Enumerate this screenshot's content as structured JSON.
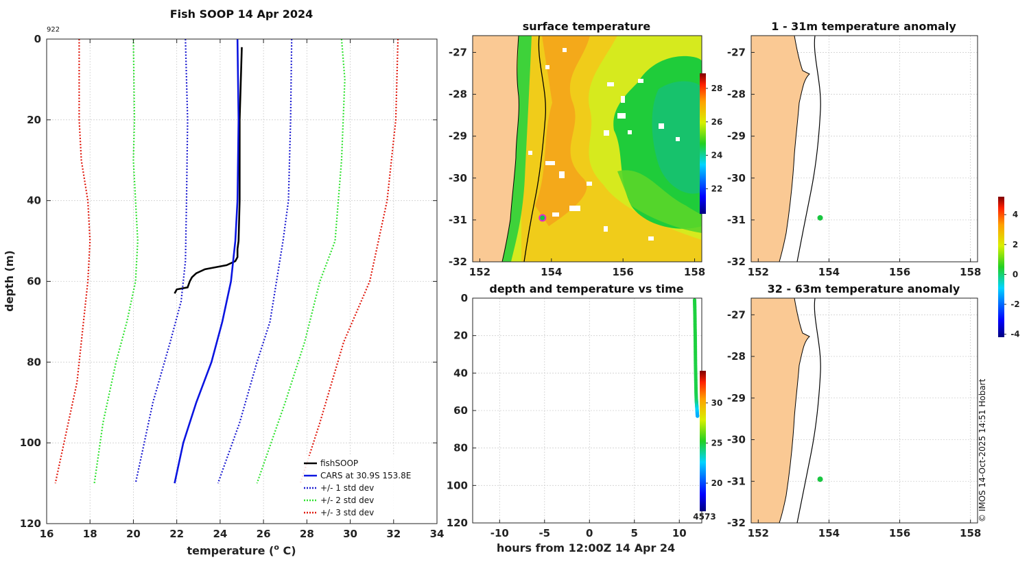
{
  "colors": {
    "fish": "#000000",
    "cars": "#0a14e0",
    "std1": "#1a1ad0",
    "std2": "#2ee22e",
    "std3": "#e0180c",
    "land": "#fac994",
    "marker": "#19c640",
    "ring": "#e02ad0"
  },
  "chart_data": [
    {
      "id": "profile",
      "type": "line",
      "title": "Fish SOOP 14 Apr 2024",
      "corner_label": "922",
      "xlabel": "temperature (",
      "xlabel_sup": "o",
      "xlabel_end": " C)",
      "ylabel": "depth (m)",
      "xlim": [
        16,
        34
      ],
      "ylim": [
        0,
        120
      ],
      "xticks": [
        16,
        18,
        20,
        22,
        24,
        26,
        28,
        30,
        32,
        34
      ],
      "yticks": [
        0,
        20,
        40,
        60,
        80,
        100,
        120
      ],
      "series": [
        {
          "name": "fishSOOP",
          "style": "solid",
          "color_key": "fish",
          "temp": [
            25.0,
            24.9,
            24.9,
            24.85,
            24.8,
            24.8,
            24.7,
            24.3,
            23.8,
            23.3,
            22.9,
            22.7,
            22.6,
            22.5,
            22.0,
            21.9
          ],
          "depth": [
            2,
            20,
            40,
            50,
            52,
            54,
            55,
            56,
            56.5,
            57,
            58,
            59,
            60,
            61.5,
            62,
            63
          ]
        },
        {
          "name": "CARS at 30.9S 153.8E",
          "style": "solid",
          "color_key": "cars",
          "temp": [
            24.8,
            24.85,
            24.8,
            24.7,
            24.5,
            24.3,
            24.1,
            23.6,
            22.9,
            22.3,
            21.9
          ],
          "depth": [
            0,
            20,
            40,
            50,
            60,
            65,
            70,
            80,
            90,
            100,
            110
          ]
        },
        {
          "name": "+/- 1 std dev",
          "style": "dotted",
          "color_key": "std1",
          "temp": [
            22.4,
            22.5,
            22.45,
            22.4,
            22.2,
            21.7,
            20.9,
            20.1
          ],
          "depth": [
            0,
            20,
            40,
            55,
            65,
            75,
            90,
            110
          ]
        },
        {
          "name": "+/- 1 std dev (upper)",
          "style": "dotted",
          "color_key": "std1",
          "temp": [
            27.3,
            27.25,
            27.15,
            26.9,
            26.6,
            26.3,
            25.7,
            24.9,
            23.9
          ],
          "depth": [
            0,
            20,
            40,
            50,
            60,
            70,
            80,
            95,
            110
          ]
        },
        {
          "name": "+/- 2 std dev",
          "style": "dotted",
          "color_key": "std2",
          "temp": [
            20.0,
            20.05,
            20.0,
            20.2,
            20.1,
            19.7,
            19.2,
            18.6,
            18.2
          ],
          "depth": [
            0,
            20,
            30,
            50,
            60,
            70,
            80,
            95,
            110
          ]
        },
        {
          "name": "+/- 2 std dev (upper)",
          "style": "dotted",
          "color_key": "std2",
          "temp": [
            29.6,
            29.75,
            29.6,
            29.3,
            28.6,
            27.9,
            27.0,
            25.7
          ],
          "depth": [
            0,
            10,
            30,
            50,
            60,
            75,
            90,
            110
          ]
        },
        {
          "name": "+/- 3 std dev",
          "style": "dotted",
          "color_key": "std3",
          "temp": [
            17.5,
            17.5,
            17.6,
            17.9,
            18.0,
            17.9,
            17.7,
            17.4,
            16.8,
            16.4
          ],
          "depth": [
            0,
            20,
            30,
            40,
            50,
            60,
            70,
            85,
            100,
            110
          ]
        },
        {
          "name": "+/- 3 std dev (upper)",
          "style": "dotted",
          "color_key": "std3",
          "temp": [
            32.2,
            32.1,
            31.7,
            30.9,
            29.7,
            28.6,
            27.7
          ],
          "depth": [
            0,
            20,
            40,
            60,
            75,
            95,
            110
          ]
        }
      ],
      "legend": [
        "fishSOOP",
        "CARS at 30.9S 153.8E",
        "+/- 1 std dev",
        "+/- 2 std dev",
        "+/- 3 std dev"
      ],
      "legend_position": "bottom-right"
    },
    {
      "id": "sst",
      "type": "heatmap",
      "title": "surface temperature",
      "xlim": [
        151.8,
        158.2
      ],
      "ylim": [
        -32,
        -26.6
      ],
      "xticks": [
        152,
        154,
        156,
        158
      ],
      "yticks": [
        -27,
        -28,
        -29,
        -30,
        -31,
        -32
      ],
      "colorbar": {
        "ticks": [
          22,
          24,
          26,
          28
        ],
        "range": [
          20.5,
          28.9
        ]
      },
      "point": {
        "lon": 153.75,
        "lat": -30.95
      }
    },
    {
      "id": "timeseries",
      "type": "scatter",
      "title": "depth and temperature vs time",
      "xlabel": "hours from 12:00Z 14 Apr 24",
      "xlim": [
        -13,
        12.5
      ],
      "ylim": [
        0,
        120
      ],
      "xticks": [
        -10,
        -5,
        0,
        5,
        10
      ],
      "yticks": [
        0,
        20,
        40,
        60,
        80,
        100,
        120
      ],
      "points": [
        {
          "hour": 11.7,
          "depth": 1,
          "temp": 24.9
        },
        {
          "hour": 11.72,
          "depth": 5,
          "temp": 24.9
        },
        {
          "hour": 11.74,
          "depth": 10,
          "temp": 24.9
        },
        {
          "hour": 11.75,
          "depth": 15,
          "temp": 24.9
        },
        {
          "hour": 11.77,
          "depth": 20,
          "temp": 24.9
        },
        {
          "hour": 11.78,
          "depth": 25,
          "temp": 24.9
        },
        {
          "hour": 11.79,
          "depth": 30,
          "temp": 24.9
        },
        {
          "hour": 11.8,
          "depth": 35,
          "temp": 24.85
        },
        {
          "hour": 11.82,
          "depth": 40,
          "temp": 24.85
        },
        {
          "hour": 11.84,
          "depth": 45,
          "temp": 24.8
        },
        {
          "hour": 11.86,
          "depth": 50,
          "temp": 24.8
        },
        {
          "hour": 11.89,
          "depth": 54,
          "temp": 24.6
        },
        {
          "hour": 11.92,
          "depth": 56,
          "temp": 24.0
        },
        {
          "hour": 11.95,
          "depth": 58,
          "temp": 23.2
        },
        {
          "hour": 11.98,
          "depth": 60,
          "temp": 22.6
        },
        {
          "hour": 12.0,
          "depth": 62,
          "temp": 22.0
        },
        {
          "hour": 12.02,
          "depth": 63,
          "temp": 21.9
        }
      ],
      "colorbar": {
        "ticks": [
          20,
          25,
          30
        ],
        "range": [
          16.5,
          34
        ],
        "label": "4573"
      }
    },
    {
      "id": "anom1",
      "type": "scatter",
      "title": "1 - 31m temperature anomaly",
      "xlim": [
        151.8,
        158.2
      ],
      "ylim": [
        -32,
        -26.6
      ],
      "xticks": [
        152,
        154,
        156,
        158
      ],
      "yticks": [
        -27,
        -28,
        -29,
        -30,
        -31,
        -32
      ],
      "point": {
        "lon": 153.75,
        "lat": -30.95,
        "anomaly": 0.3
      }
    },
    {
      "id": "anom2",
      "type": "scatter",
      "title": "32 - 63m temperature anomaly",
      "xlim": [
        151.8,
        158.2
      ],
      "ylim": [
        -32,
        -26.6
      ],
      "xticks": [
        152,
        154,
        156,
        158
      ],
      "yticks": [
        -27,
        -28,
        -29,
        -30,
        -31,
        -32
      ],
      "point": {
        "lon": 153.75,
        "lat": -30.95,
        "anomaly": 0.3
      },
      "colorbar": {
        "ticks": [
          4,
          2,
          0,
          -2,
          -4
        ],
        "range": [
          -4.2,
          5.2
        ]
      }
    }
  ],
  "credit": "© IMOS 14-Oct-2025 14:51 Hobart"
}
